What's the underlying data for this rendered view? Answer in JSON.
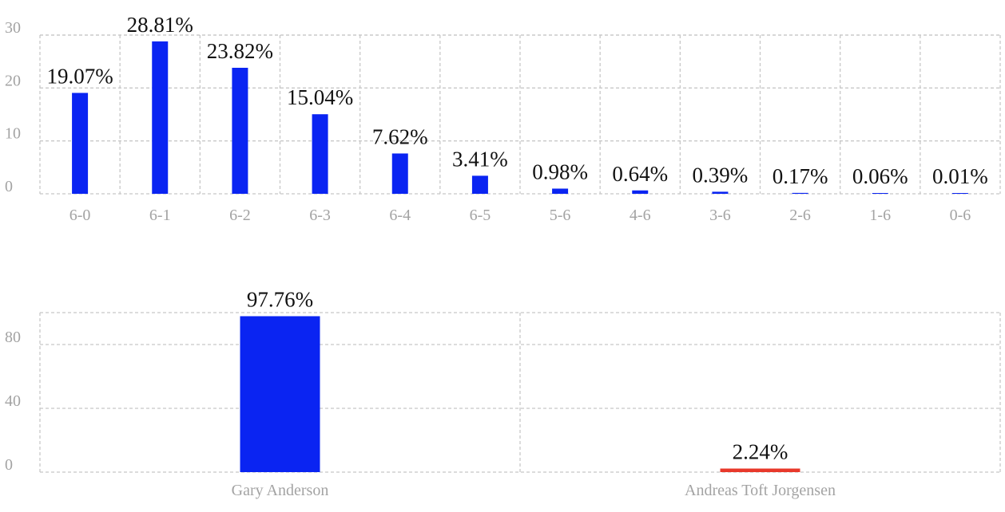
{
  "chart_data": [
    {
      "type": "bar",
      "categories": [
        "6-0",
        "6-1",
        "6-2",
        "6-3",
        "6-4",
        "6-5",
        "5-6",
        "4-6",
        "3-6",
        "2-6",
        "1-6",
        "0-6"
      ],
      "values": [
        19.07,
        28.81,
        23.82,
        15.04,
        7.62,
        3.41,
        0.98,
        0.64,
        0.39,
        0.17,
        0.06,
        0.01
      ],
      "data_labels": [
        "19.07%",
        "28.81%",
        "23.82%",
        "15.04%",
        "7.62%",
        "3.41%",
        "0.98%",
        "0.64%",
        "0.39%",
        "0.17%",
        "0.06%",
        "0.01%"
      ],
      "y_ticks": [
        0,
        10,
        20,
        30
      ],
      "ylim": [
        0,
        30
      ],
      "grid": true,
      "bar_colors": [
        "#0a24f2"
      ]
    },
    {
      "type": "bar",
      "categories": [
        "Gary Anderson",
        "Andreas Toft Jorgensen"
      ],
      "values": [
        97.76,
        2.24
      ],
      "data_labels": [
        "97.76%",
        "2.24%"
      ],
      "y_ticks": [
        0,
        40,
        80
      ],
      "ylim": [
        0,
        100
      ],
      "grid": true,
      "bar_colors": [
        "#0a24f2",
        "#e8392b"
      ]
    }
  ]
}
